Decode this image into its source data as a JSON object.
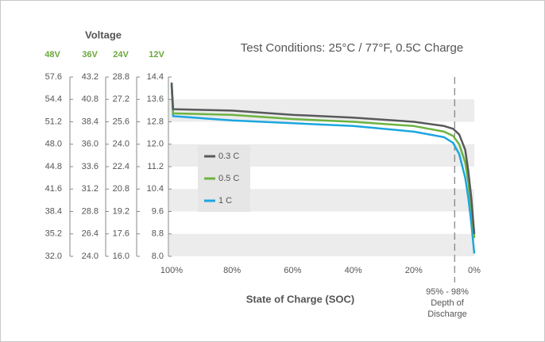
{
  "chart_data": {
    "type": "line",
    "title": "Test Conditions: 25°C / 77°F, 0.5C Charge",
    "ylabel_group": "Voltage",
    "ylabel": "12V",
    "xlabel": "State of Charge (SOC)",
    "x": [
      100,
      99.5,
      80,
      60,
      40,
      20,
      10,
      7,
      5,
      3,
      2,
      1,
      0
    ],
    "xlim": [
      100,
      0
    ],
    "xticks": [
      {
        "value": 100,
        "label": "100%"
      },
      {
        "value": 80,
        "label": "80%"
      },
      {
        "value": 60,
        "label": "60%"
      },
      {
        "value": 40,
        "label": "40%"
      },
      {
        "value": 20,
        "label": "20%"
      },
      {
        "value": 0,
        "label": "0%"
      }
    ],
    "ylim": [
      8,
      14.4
    ],
    "yticks": [
      {
        "value": 8,
        "label": "8.0"
      },
      8.8,
      9.6,
      10.4,
      11.2,
      {
        "value": 12,
        "label": "12.0"
      },
      12.8,
      13.6,
      14.4
    ],
    "extra_axes": [
      {
        "label": "48V",
        "ylim": [
          32,
          57.6
        ],
        "yticks": [
          {
            "value": 32,
            "label": "32.0"
          },
          35.2,
          38.4,
          41.6,
          44.8,
          {
            "value": 48,
            "label": "48.0"
          },
          51.2,
          54.4,
          57.6
        ]
      },
      {
        "label": "36V",
        "ylim": [
          24,
          43.2
        ],
        "yticks": [
          {
            "value": 24,
            "label": "24.0"
          },
          26.4,
          28.8,
          31.2,
          33.6,
          {
            "value": 36,
            "label": "36.0"
          },
          38.4,
          40.8,
          43.2
        ]
      },
      {
        "label": "24V",
        "ylim": [
          16,
          28.8
        ],
        "yticks": [
          {
            "value": 16,
            "label": "16.0"
          },
          17.6,
          19.2,
          20.8,
          22.4,
          {
            "value": 24,
            "label": "24.0"
          },
          25.6,
          27.2,
          28.8
        ]
      }
    ],
    "grid": true,
    "series": [
      {
        "name": "0.3 C",
        "color": "#58595b",
        "values": [
          14.2,
          13.25,
          13.2,
          13.05,
          12.95,
          12.8,
          12.65,
          12.55,
          12.35,
          11.8,
          11.05,
          10.1,
          8.8
        ]
      },
      {
        "name": "0.5 C",
        "color": "#6cb33f",
        "values": [
          14.15,
          13.1,
          13.05,
          12.9,
          12.8,
          12.65,
          12.45,
          12.3,
          12.0,
          11.35,
          10.65,
          9.8,
          8.65
        ]
      },
      {
        "name": "1 C",
        "color": "#1ba6df",
        "values": [
          14.1,
          13.0,
          12.85,
          12.75,
          12.65,
          12.45,
          12.25,
          12.05,
          11.65,
          10.8,
          10.1,
          9.2,
          8.1
        ]
      }
    ],
    "annotation": [
      "95% - 98%",
      "Depth of",
      "Discharge"
    ],
    "annotation_x": 6.5
  }
}
